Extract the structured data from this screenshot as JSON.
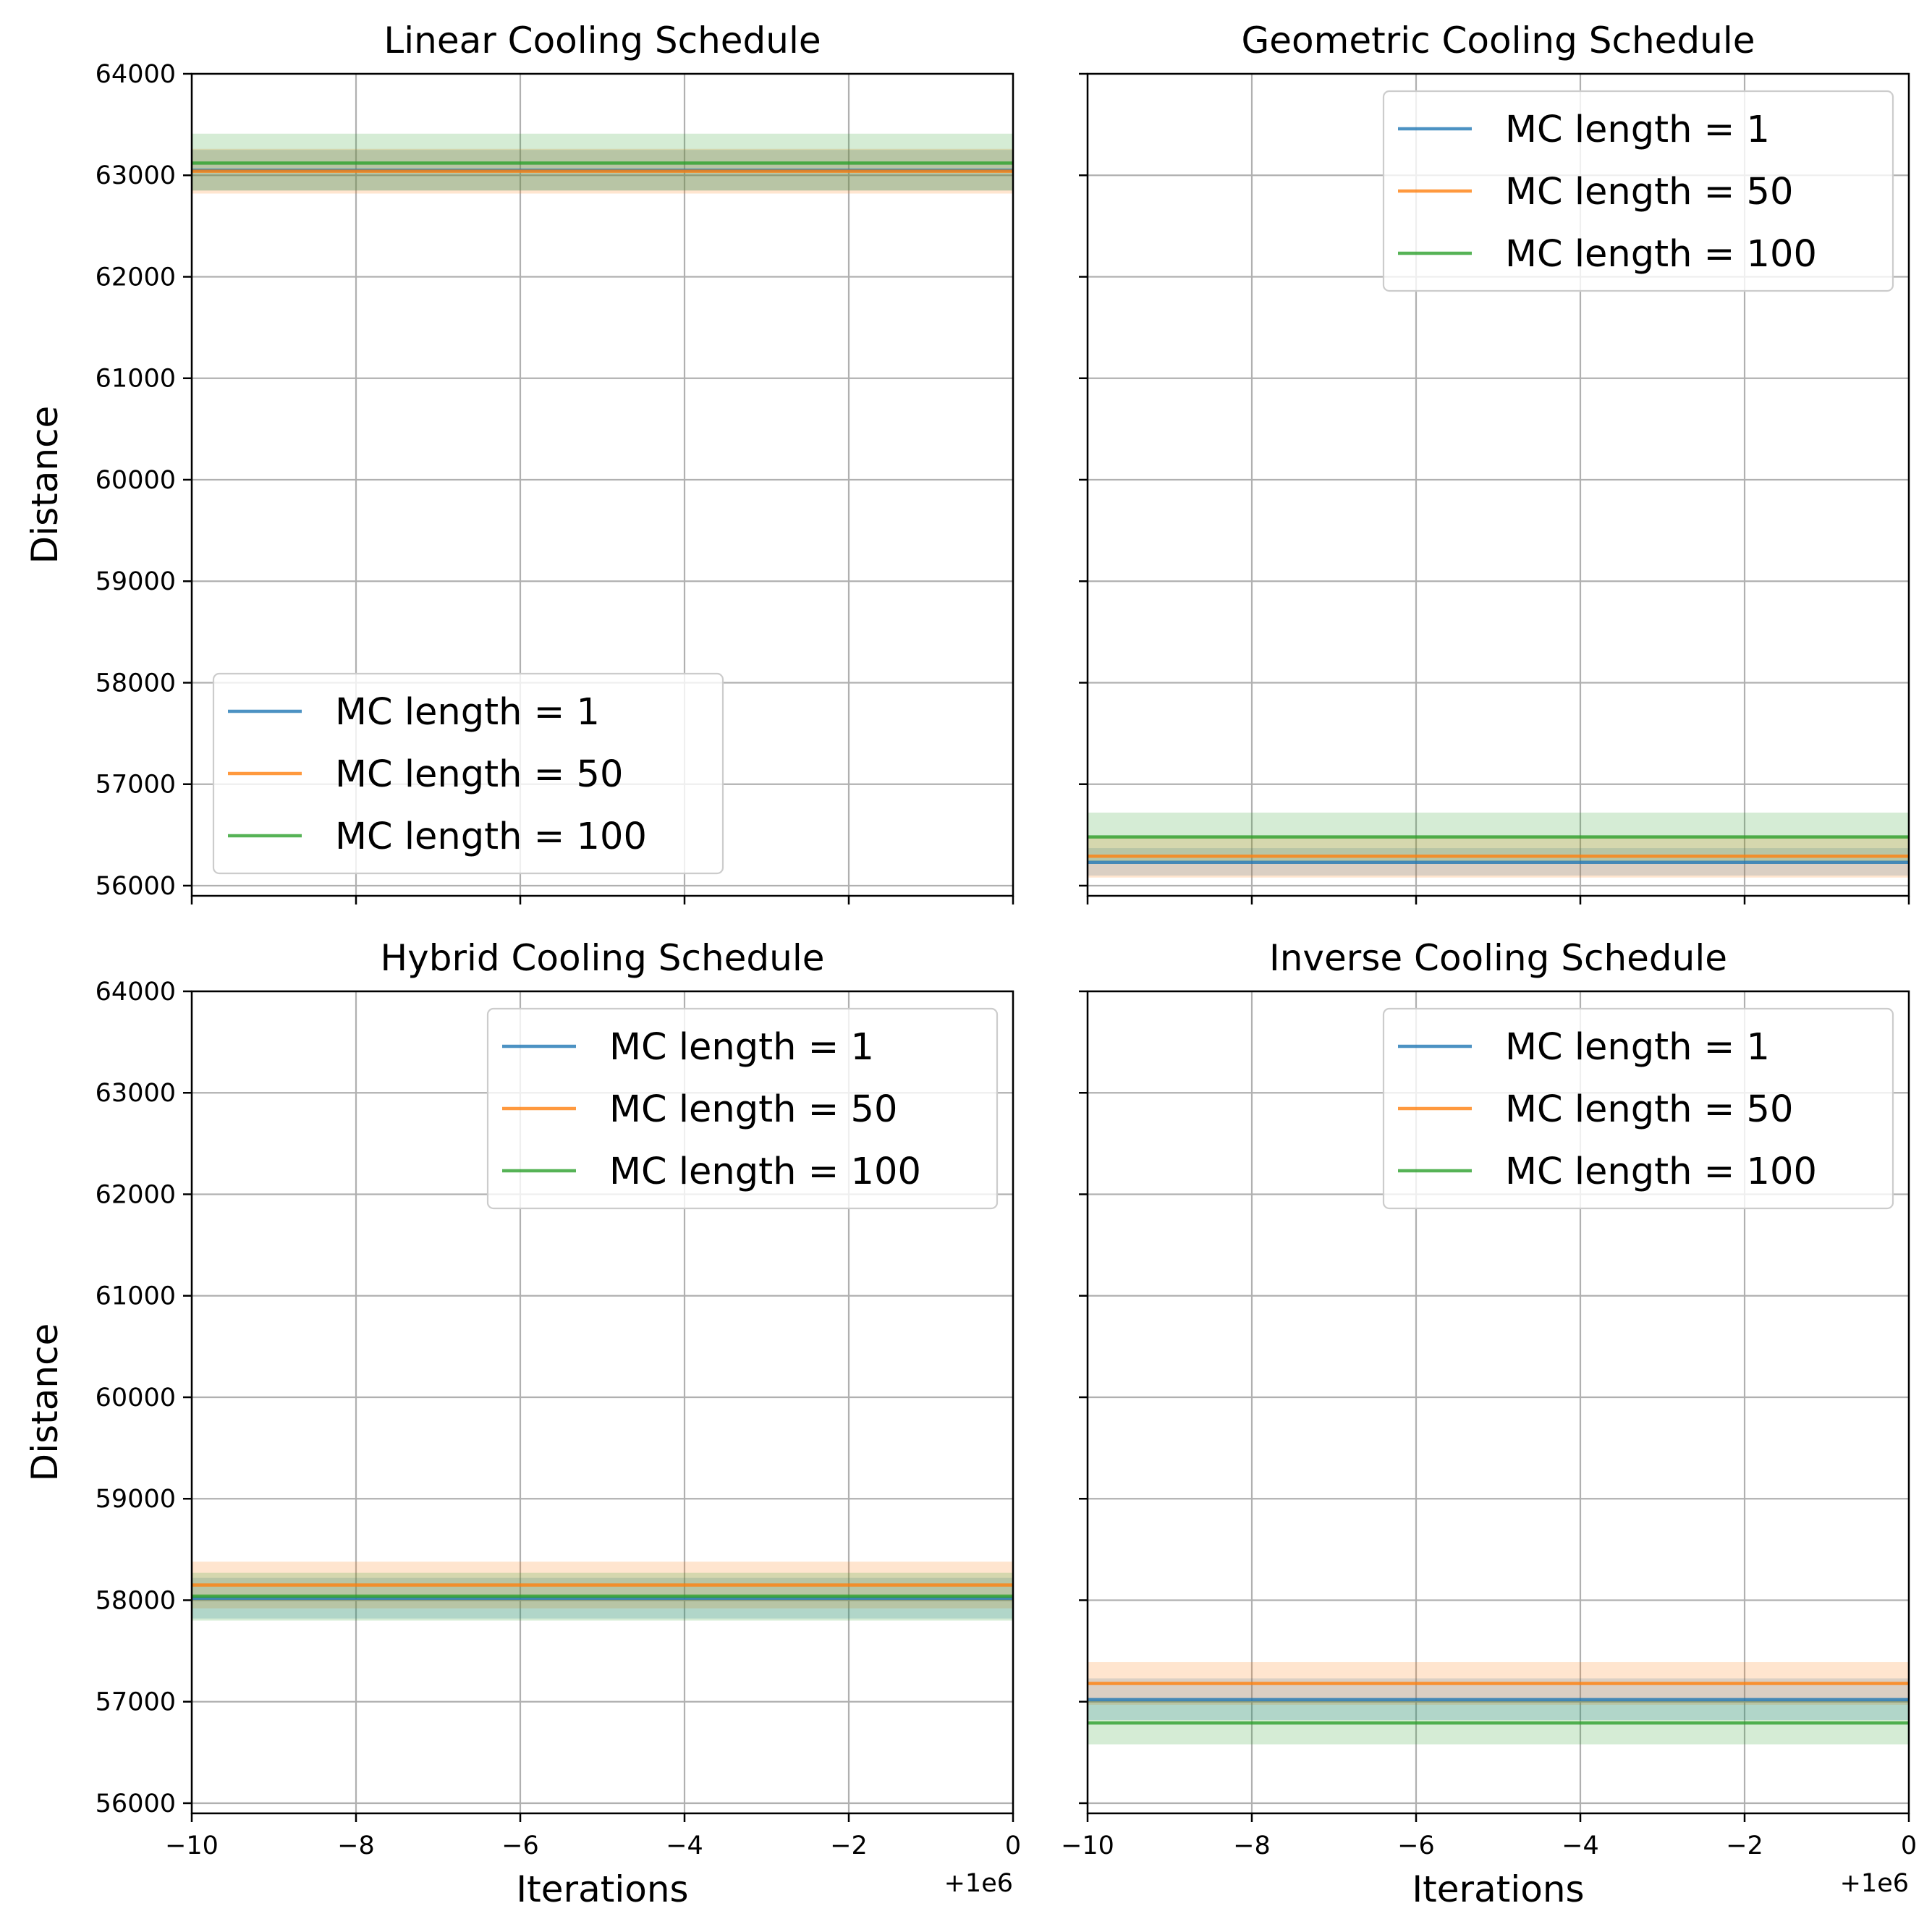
{
  "colors": {
    "mc1": "#1f77b4",
    "mc50": "#ff7f0e",
    "mc100": "#2ca02c",
    "grid": "#b0b0b0",
    "axis": "#000000",
    "legend_edge": "#cccccc"
  },
  "chart_data": [
    {
      "type": "line",
      "title": "Linear Cooling Schedule",
      "xlabel": "",
      "ylabel": "Distance",
      "xlim": [
        -10,
        0
      ],
      "ylim": [
        55900,
        64000
      ],
      "x_offset_label": "",
      "xticks": [
        -10,
        -8,
        -6,
        -4,
        -2,
        0
      ],
      "xtick_labels": [
        "",
        "",
        "",
        "",
        "",
        ""
      ],
      "yticks": [
        56000,
        57000,
        58000,
        59000,
        60000,
        61000,
        62000,
        63000,
        64000
      ],
      "ytick_labels": [
        "56000",
        "57000",
        "58000",
        "59000",
        "60000",
        "61000",
        "62000",
        "63000",
        "64000"
      ],
      "grid": true,
      "legend_position": "lower-left",
      "series": [
        {
          "name": "MC length = 1",
          "color": "#1f77b4",
          "x": [
            -10,
            0
          ],
          "y": [
            63050,
            63050
          ],
          "band": [
            62850,
            63250
          ]
        },
        {
          "name": "MC length = 50",
          "color": "#ff7f0e",
          "x": [
            -10,
            0
          ],
          "y": [
            63040,
            63040
          ],
          "band": [
            62820,
            63260
          ]
        },
        {
          "name": "MC length = 100",
          "color": "#2ca02c",
          "x": [
            -10,
            0
          ],
          "y": [
            63120,
            63120
          ],
          "band": [
            62850,
            63410
          ]
        }
      ]
    },
    {
      "type": "line",
      "title": "Geometric Cooling Schedule",
      "xlabel": "",
      "ylabel": "",
      "xlim": [
        -10,
        0
      ],
      "ylim": [
        55900,
        64000
      ],
      "x_offset_label": "",
      "xticks": [
        -10,
        -8,
        -6,
        -4,
        -2,
        0
      ],
      "xtick_labels": [
        "",
        "",
        "",
        "",
        "",
        ""
      ],
      "yticks": [
        56000,
        57000,
        58000,
        59000,
        60000,
        61000,
        62000,
        63000,
        64000
      ],
      "ytick_labels": [
        "",
        "",
        "",
        "",
        "",
        "",
        "",
        "",
        ""
      ],
      "grid": true,
      "legend_position": "upper-right",
      "series": [
        {
          "name": "MC length = 1",
          "color": "#1f77b4",
          "x": [
            -10,
            0
          ],
          "y": [
            56230,
            56230
          ],
          "band": [
            56100,
            56370
          ]
        },
        {
          "name": "MC length = 50",
          "color": "#ff7f0e",
          "x": [
            -10,
            0
          ],
          "y": [
            56290,
            56290
          ],
          "band": [
            56080,
            56490
          ]
        },
        {
          "name": "MC length = 100",
          "color": "#2ca02c",
          "x": [
            -10,
            0
          ],
          "y": [
            56480,
            56480
          ],
          "band": [
            56240,
            56720
          ]
        }
      ]
    },
    {
      "type": "line",
      "title": "Hybrid Cooling Schedule",
      "xlabel": "Iterations",
      "ylabel": "Distance",
      "xlim": [
        -10,
        0
      ],
      "ylim": [
        55900,
        64000
      ],
      "x_offset_label": "+1e6",
      "xticks": [
        -10,
        -8,
        -6,
        -4,
        -2,
        0
      ],
      "xtick_labels": [
        "−10",
        "−8",
        "−6",
        "−4",
        "−2",
        "0"
      ],
      "yticks": [
        56000,
        57000,
        58000,
        59000,
        60000,
        61000,
        62000,
        63000,
        64000
      ],
      "ytick_labels": [
        "56000",
        "57000",
        "58000",
        "59000",
        "60000",
        "61000",
        "62000",
        "63000",
        "64000"
      ],
      "grid": true,
      "legend_position": "upper-right",
      "series": [
        {
          "name": "MC length = 1",
          "color": "#1f77b4",
          "x": [
            -10,
            0
          ],
          "y": [
            58020,
            58020
          ],
          "band": [
            57820,
            58220
          ]
        },
        {
          "name": "MC length = 50",
          "color": "#ff7f0e",
          "x": [
            -10,
            0
          ],
          "y": [
            58150,
            58150
          ],
          "band": [
            57920,
            58380
          ]
        },
        {
          "name": "MC length = 100",
          "color": "#2ca02c",
          "x": [
            -10,
            0
          ],
          "y": [
            58040,
            58040
          ],
          "band": [
            57800,
            58270
          ]
        }
      ]
    },
    {
      "type": "line",
      "title": "Inverse Cooling Schedule",
      "xlabel": "Iterations",
      "ylabel": "",
      "xlim": [
        -10,
        0
      ],
      "ylim": [
        55900,
        64000
      ],
      "x_offset_label": "+1e6",
      "xticks": [
        -10,
        -8,
        -6,
        -4,
        -2,
        0
      ],
      "xtick_labels": [
        "−10",
        "−8",
        "−6",
        "−4",
        "−2",
        "0"
      ],
      "yticks": [
        56000,
        57000,
        58000,
        59000,
        60000,
        61000,
        62000,
        63000,
        64000
      ],
      "ytick_labels": [
        "",
        "",
        "",
        "",
        "",
        "",
        "",
        "",
        ""
      ],
      "grid": true,
      "legend_position": "upper-right",
      "series": [
        {
          "name": "MC length = 1",
          "color": "#1f77b4",
          "x": [
            -10,
            0
          ],
          "y": [
            57020,
            57020
          ],
          "band": [
            56820,
            57230
          ]
        },
        {
          "name": "MC length = 50",
          "color": "#ff7f0e",
          "x": [
            -10,
            0
          ],
          "y": [
            57180,
            57180
          ],
          "band": [
            56970,
            57390
          ]
        },
        {
          "name": "MC length = 100",
          "color": "#2ca02c",
          "x": [
            -10,
            0
          ],
          "y": [
            56790,
            56790
          ],
          "band": [
            56580,
            57010
          ]
        }
      ]
    }
  ]
}
